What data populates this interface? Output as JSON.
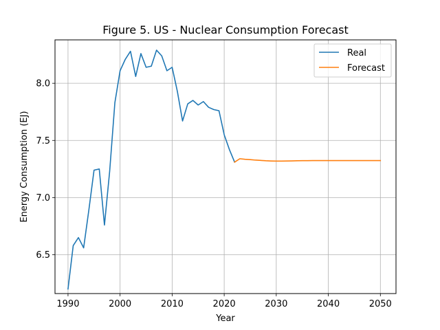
{
  "chart_data": {
    "type": "line",
    "title": "Figure 5. US - Nuclear Consumption Forecast",
    "xlabel": "Year",
    "ylabel": "Energy Consumption (EJ)",
    "xlim": [
      1987.5,
      2053
    ],
    "ylim": [
      6.16,
      8.38
    ],
    "xticks": [
      1990,
      2000,
      2010,
      2020,
      2030,
      2040,
      2050
    ],
    "yticks": [
      6.5,
      7.0,
      7.5,
      8.0
    ],
    "ytick_labels": [
      "6.5",
      "7.0",
      "7.5",
      "8.0"
    ],
    "grid": true,
    "legend_position": "top-right",
    "series": [
      {
        "name": "Real",
        "color": "#1f77b4",
        "x": [
          1990,
          1991,
          1992,
          1993,
          1994,
          1995,
          1996,
          1997,
          1998,
          1999,
          2000,
          2001,
          2002,
          2003,
          2004,
          2005,
          2006,
          2007,
          2008,
          2009,
          2010,
          2011,
          2012,
          2013,
          2014,
          2015,
          2016,
          2017,
          2018,
          2019,
          2020,
          2021,
          2022
        ],
        "y": [
          6.2,
          6.58,
          6.65,
          6.56,
          6.89,
          7.24,
          7.25,
          6.76,
          7.23,
          7.83,
          8.11,
          8.21,
          8.28,
          8.06,
          8.26,
          8.14,
          8.15,
          8.29,
          8.24,
          8.11,
          8.14,
          7.93,
          7.67,
          7.82,
          7.85,
          7.81,
          7.84,
          7.79,
          7.77,
          7.76,
          7.55,
          7.42,
          7.31
        ]
      },
      {
        "name": "Forecast",
        "color": "#ff7f0e",
        "x": [
          2022,
          2023,
          2024,
          2025,
          2026,
          2027,
          2028,
          2029,
          2030,
          2031,
          2032,
          2033,
          2034,
          2035,
          2036,
          2037,
          2038,
          2039,
          2040,
          2041,
          2042,
          2043,
          2044,
          2045,
          2046,
          2047,
          2048,
          2049,
          2050
        ],
        "y": [
          7.31,
          7.34,
          7.335,
          7.332,
          7.328,
          7.325,
          7.322,
          7.32,
          7.319,
          7.319,
          7.32,
          7.321,
          7.322,
          7.323,
          7.323,
          7.324,
          7.324,
          7.324,
          7.324,
          7.324,
          7.324,
          7.324,
          7.324,
          7.324,
          7.324,
          7.324,
          7.324,
          7.324,
          7.324
        ]
      }
    ]
  }
}
